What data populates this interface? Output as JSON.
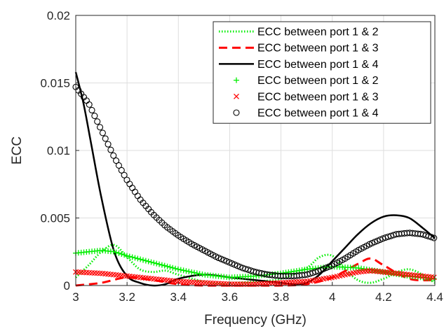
{
  "chart_data": {
    "type": "line",
    "title": "",
    "xlabel": "Frequency (GHz)",
    "ylabel": "ECC",
    "xlim": [
      3,
      4.4
    ],
    "ylim": [
      0,
      0.02
    ],
    "xticks": [
      "3",
      "3.2",
      "3.4",
      "3.6",
      "3.8",
      "4",
      "4.2",
      "4.4"
    ],
    "yticks": [
      "0",
      "0.005",
      "0.01",
      "0.015",
      "0.02"
    ],
    "grid": true,
    "legend_position": "top-right",
    "series": [
      {
        "name": "ECC between port 1 & 2",
        "style": "dotted-line",
        "color": "#00ee00",
        "x": [
          3.0,
          3.05,
          3.1,
          3.15,
          3.2,
          3.25,
          3.3,
          3.35,
          3.4,
          3.5,
          3.6,
          3.7,
          3.8,
          3.9,
          3.95,
          4.0,
          4.05,
          4.1,
          4.15,
          4.2,
          4.3,
          4.4
        ],
        "y": [
          0.0006,
          0.0015,
          0.0025,
          0.003,
          0.0021,
          0.0012,
          0.001,
          0.0011,
          0.0008,
          0.0003,
          0.0002,
          0.0003,
          0.0005,
          0.0013,
          0.0021,
          0.0022,
          0.0012,
          0.0004,
          0.0002,
          0.0005,
          0.0012,
          0.0002
        ]
      },
      {
        "name": "ECC between port 1 & 3",
        "style": "dashed-line",
        "color": "#ff0000",
        "x": [
          3.0,
          3.1,
          3.2,
          3.3,
          3.4,
          3.5,
          3.6,
          3.7,
          3.8,
          3.9,
          4.0,
          4.1,
          4.15,
          4.2,
          4.3,
          4.4
        ],
        "y": [
          0.0,
          0.0002,
          0.0006,
          0.0004,
          0.0001,
          0.0,
          0.0,
          0.0,
          0.0,
          0.0001,
          0.0006,
          0.0016,
          0.002,
          0.0015,
          0.0005,
          0.0004
        ]
      },
      {
        "name": "ECC between port 1 & 4",
        "style": "solid-line",
        "color": "#000000",
        "x": [
          3.0,
          3.03,
          3.06,
          3.1,
          3.15,
          3.2,
          3.25,
          3.3,
          3.35,
          3.4,
          3.5,
          3.6,
          3.7,
          3.8,
          3.85,
          3.9,
          3.95,
          4.0,
          4.05,
          4.1,
          4.15,
          4.2,
          4.25,
          4.3,
          4.35,
          4.4
        ],
        "y": [
          0.0158,
          0.0135,
          0.0105,
          0.0065,
          0.0025,
          0.0007,
          0.0002,
          0.0,
          0.0001,
          0.0005,
          0.0008,
          0.0006,
          0.0004,
          0.0002,
          0.0001,
          0.0002,
          0.0008,
          0.0018,
          0.0028,
          0.0038,
          0.0046,
          0.0051,
          0.0052,
          0.005,
          0.0043,
          0.0035
        ]
      },
      {
        "name": "ECC between port 1 & 2",
        "style": "plus-markers",
        "color": "#00ee00",
        "x": [
          3.0,
          3.05,
          3.1,
          3.15,
          3.2,
          3.3,
          3.4,
          3.5,
          3.6,
          3.7,
          3.8,
          3.9,
          4.0,
          4.1,
          4.2,
          4.3,
          4.4
        ],
        "y": [
          0.0024,
          0.0025,
          0.0026,
          0.0025,
          0.0022,
          0.0017,
          0.0012,
          0.0008,
          0.0006,
          0.0007,
          0.0009,
          0.0012,
          0.0014,
          0.0013,
          0.001,
          0.0007,
          0.0005
        ]
      },
      {
        "name": "ECC between port 1 & 3",
        "style": "x-markers",
        "color": "#ff0000",
        "x": [
          3.0,
          3.1,
          3.2,
          3.3,
          3.4,
          3.5,
          3.6,
          3.7,
          3.8,
          3.9,
          4.0,
          4.1,
          4.15,
          4.2,
          4.3,
          4.4
        ],
        "y": [
          0.001,
          0.0009,
          0.0007,
          0.0005,
          0.0003,
          0.0002,
          0.0001,
          0.0001,
          0.0002,
          0.0003,
          0.0006,
          0.001,
          0.0011,
          0.001,
          0.0008,
          0.0006
        ]
      },
      {
        "name": "ECC between port 1 & 4",
        "style": "circle-markers",
        "color": "#000000",
        "x": [
          3.0,
          3.05,
          3.1,
          3.15,
          3.2,
          3.25,
          3.3,
          3.35,
          3.4,
          3.45,
          3.5,
          3.55,
          3.6,
          3.65,
          3.7,
          3.75,
          3.8,
          3.85,
          3.9,
          3.95,
          4.0,
          4.05,
          4.1,
          4.15,
          4.2,
          4.25,
          4.3,
          4.35,
          4.4
        ],
        "y": [
          0.0147,
          0.0135,
          0.0115,
          0.0095,
          0.0078,
          0.0064,
          0.0053,
          0.0044,
          0.0037,
          0.0031,
          0.0026,
          0.0021,
          0.0017,
          0.0013,
          0.001,
          0.0008,
          0.0007,
          0.0007,
          0.0008,
          0.0011,
          0.0015,
          0.002,
          0.0026,
          0.0031,
          0.0035,
          0.0038,
          0.0039,
          0.0038,
          0.0035
        ]
      }
    ]
  }
}
